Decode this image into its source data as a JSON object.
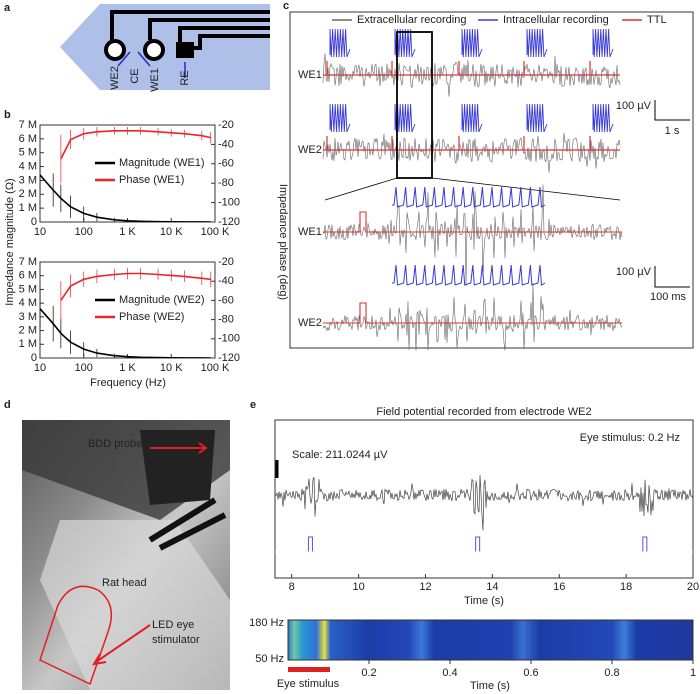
{
  "panel_labels": [
    "a",
    "b",
    "c",
    "d",
    "e"
  ],
  "panel_a": {
    "electrodes": [
      "WE2",
      "CE",
      "WE1",
      "RE"
    ]
  },
  "panel_b": {
    "xlabel": "Frequency (Hz)",
    "ylabel": "Impedance magnitude (Ω)",
    "y2label": "Impedance phase (deg)",
    "charts": [
      {
        "type": "line",
        "log_x": true,
        "x": [
          10,
          20,
          30,
          50,
          100,
          200,
          500,
          1000,
          2000,
          5000,
          10000,
          20000,
          50000,
          80000
        ],
        "xlim": [
          10,
          100000
        ],
        "xticks": [
          10,
          100,
          {
            "value": 1000,
            "label": "1 K"
          },
          {
            "value": 10000,
            "label": "10 K"
          },
          {
            "value": 100000,
            "label": "100 K"
          }
        ],
        "ylim": [
          0,
          7000000
        ],
        "yticks": [
          0,
          {
            "value": 1000000,
            "label": "1 M"
          },
          {
            "value": 2000000,
            "label": "2 M"
          },
          {
            "value": 3000000,
            "label": "3 M"
          },
          {
            "value": 4000000,
            "label": "4 M"
          },
          {
            "value": 5000000,
            "label": "5 M"
          },
          {
            "value": 6000000,
            "label": "6 M"
          },
          {
            "value": 7000000,
            "label": "7 M"
          }
        ],
        "y2lim": [
          -120,
          -20
        ],
        "y2ticks": [
          -120,
          -100,
          -80,
          -60,
          -40,
          -20
        ],
        "series": [
          {
            "name": "Magnitude (WE1)",
            "color": "#000000",
            "values": [
              3400000,
              2300000,
              1700000,
              1100000,
              620000,
              350000,
              160000,
              90000,
              50000,
              25000,
              15000,
              8000,
              4000,
              3000
            ],
            "errors": [
              1300000,
              1200000,
              1000000,
              800000,
              500000,
              300000,
              150000,
              80000,
              50000,
              30000,
              20000,
              10000,
              5000,
              4000
            ]
          },
          {
            "name": "Phase (WE1)",
            "color": "#e8262a",
            "axis": "y2",
            "values": [
              null,
              null,
              -55,
              -35,
              -29,
              -27,
              -26,
              -26,
              -26,
              -27,
              -28,
              -29,
              -31,
              -33
            ],
            "errors": [
              null,
              null,
              25,
              10,
              6,
              5,
              4,
              4,
              4,
              4,
              4,
              4,
              5,
              6
            ]
          }
        ]
      },
      {
        "type": "line",
        "log_x": true,
        "x": [
          10,
          20,
          30,
          50,
          100,
          200,
          500,
          1000,
          2000,
          5000,
          10000,
          20000,
          50000,
          80000
        ],
        "xlim": [
          10,
          100000
        ],
        "xticks": [
          10,
          100,
          {
            "value": 1000,
            "label": "1 K"
          },
          {
            "value": 10000,
            "label": "10 K"
          },
          {
            "value": 100000,
            "label": "100 K"
          }
        ],
        "ylim": [
          0,
          7000000
        ],
        "yticks": [
          0,
          {
            "value": 1000000,
            "label": "1 M"
          },
          {
            "value": 2000000,
            "label": "2 M"
          },
          {
            "value": 3000000,
            "label": "3 M"
          },
          {
            "value": 4000000,
            "label": "4 M"
          },
          {
            "value": 5000000,
            "label": "5 M"
          },
          {
            "value": 6000000,
            "label": "6 M"
          },
          {
            "value": 7000000,
            "label": "7 M"
          }
        ],
        "y2lim": [
          -120,
          -20
        ],
        "y2ticks": [
          -120,
          -100,
          -80,
          -60,
          -40,
          -20
        ],
        "series": [
          {
            "name": "Magnitude (WE2)",
            "color": "#000000",
            "values": [
              3600000,
              2500000,
              1800000,
              1150000,
              650000,
              360000,
              170000,
              95000,
              52000,
              26000,
              16000,
              9000,
              4500,
              3000
            ],
            "errors": [
              1400000,
              1300000,
              1100000,
              850000,
              500000,
              300000,
              150000,
              80000,
              50000,
              30000,
              20000,
              10000,
              5000,
              4000
            ]
          },
          {
            "name": "Phase (WE2)",
            "color": "#e8262a",
            "axis": "y2",
            "values": [
              null,
              null,
              -60,
              -45,
              -38,
              -35,
              -33,
              -32,
              -32,
              -33,
              -34,
              -35,
              -37,
              -38
            ],
            "errors": [
              null,
              null,
              20,
              12,
              8,
              7,
              6,
              6,
              6,
              6,
              6,
              6,
              7,
              8
            ]
          }
        ]
      }
    ]
  },
  "panel_c": {
    "legend": [
      {
        "name": "Extracellular recording",
        "color": "#666666"
      },
      {
        "name": "Intracellular recording",
        "color": "#3a3ad8"
      },
      {
        "name": "TTL",
        "color": "#e03030"
      }
    ],
    "channels": [
      "WE1",
      "WE2"
    ],
    "scale_top": {
      "amplitude": "100 µV",
      "time": "1 s"
    },
    "scale_bottom": {
      "amplitude": "100 µV",
      "time": "100 ms"
    }
  },
  "panel_d": {
    "labels": {
      "probe": "BDD probe",
      "head": "Rat head",
      "led": [
        "LED eye",
        "stimulator"
      ]
    }
  },
  "panel_e": {
    "title": "Field potential recorded from electrode WE2",
    "stimulus_note": "Eye stimulus: 0.2 Hz",
    "scale_note": "Scale: 211.0244 µV",
    "trace": {
      "xlim": [
        7.5,
        20
      ],
      "xticks": [
        8,
        10,
        12,
        14,
        16,
        18,
        20
      ],
      "xlabel": "Time (s)",
      "stimulus_times": [
        8.5,
        13.5,
        18.5
      ],
      "color": "#5555dd"
    },
    "spectrogram": {
      "xlim": [
        0,
        1
      ],
      "xticks": [
        0.2,
        0.4,
        0.6,
        0.8,
        1
      ],
      "xlabel": "Time (s)",
      "ylabels": [
        "180 Hz",
        "50 Hz"
      ],
      "stimulus_label": "Eye stimulus"
    }
  }
}
